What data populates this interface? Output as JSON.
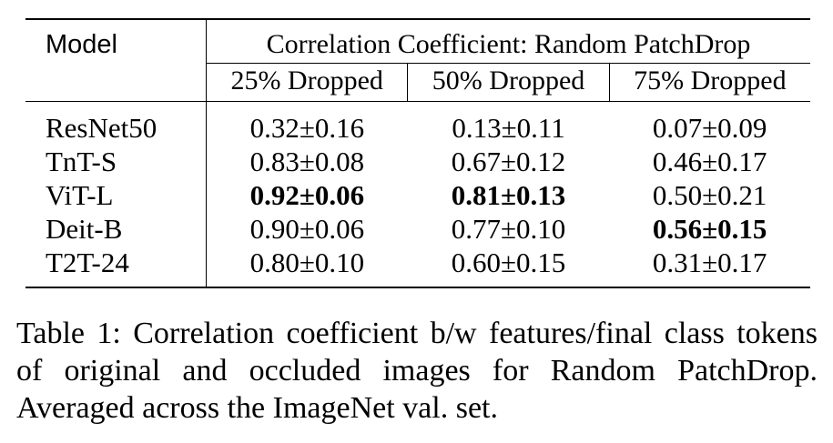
{
  "table": {
    "model_header": "Model",
    "group_header": "Correlation Coefficient: Random PatchDrop",
    "sub_headers": [
      "25% Dropped",
      "50% Dropped",
      "75% Dropped"
    ],
    "rows": [
      {
        "model": "ResNet50",
        "values": [
          "0.32±0.16",
          "0.13±0.11",
          "0.07±0.09"
        ],
        "bold": [
          false,
          false,
          false
        ]
      },
      {
        "model": "TnT-S",
        "values": [
          "0.83±0.08",
          "0.67±0.12",
          "0.46±0.17"
        ],
        "bold": [
          false,
          false,
          false
        ]
      },
      {
        "model": "ViT-L",
        "values": [
          "0.92±0.06",
          "0.81±0.13",
          "0.50±0.21"
        ],
        "bold": [
          true,
          true,
          false
        ]
      },
      {
        "model": "Deit-B",
        "values": [
          "0.90±0.06",
          "0.77±0.10",
          "0.56±0.15"
        ],
        "bold": [
          false,
          false,
          true
        ]
      },
      {
        "model": "T2T-24",
        "values": [
          "0.80±0.10",
          "0.60±0.15",
          "0.31±0.17"
        ],
        "bold": [
          false,
          false,
          false
        ]
      }
    ]
  },
  "caption": "Table 1: Correlation coefficient b/w features/final class tokens of original and occluded images for Random PatchDrop. Averaged across the ImageNet val. set."
}
